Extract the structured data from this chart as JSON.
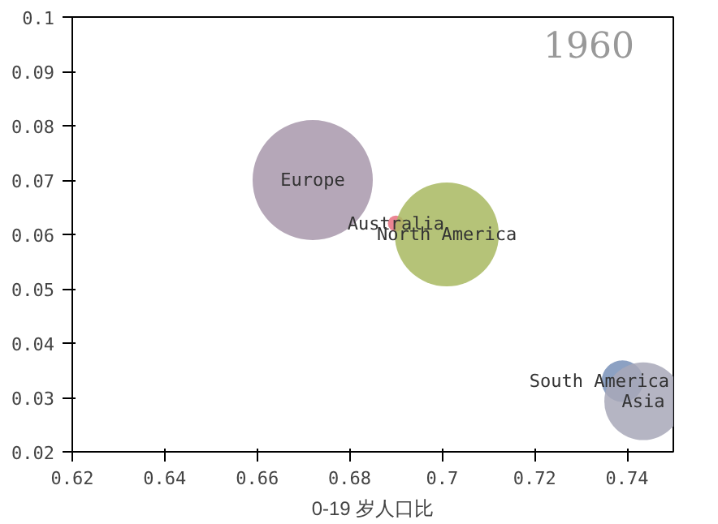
{
  "chart_data": {
    "type": "bubble",
    "title": "1960",
    "xlabel": "0-19 岁人口比",
    "xlim": [
      0.62,
      0.75
    ],
    "ylim": [
      0.02,
      0.1
    ],
    "xticks": [
      0.62,
      0.64,
      0.66,
      0.68,
      {
        "value": 0.7,
        "label": "0.7"
      },
      0.72,
      0.74
    ],
    "yticks": [
      0.02,
      0.03,
      0.04,
      0.05,
      0.06,
      0.07,
      0.08,
      0.09,
      {
        "value": 0.1,
        "label": "0.1"
      }
    ],
    "grid": false,
    "series": [
      {
        "name": "Europe",
        "color": "#a898ac",
        "x": [
          0.672
        ],
        "values": [
          0.07
        ],
        "sizes": [
          1
        ]
      },
      {
        "name": "Australia",
        "color": "#e87080",
        "x": [
          0.69
        ],
        "values": [
          0.062
        ],
        "sizes": [
          0.018
        ]
      },
      {
        "name": "North America",
        "color": "#a8b860",
        "x": [
          0.701
        ],
        "values": [
          0.06
        ],
        "sizes": [
          0.75
        ]
      },
      {
        "name": "South America",
        "color": "#7890b8",
        "x": [
          0.739
        ],
        "values": [
          0.033
        ],
        "sizes": [
          0.12
        ]
      },
      {
        "name": "Asia",
        "color": "#a8a8b8",
        "x": [
          0.7435
        ],
        "values": [
          0.0293
        ],
        "sizes": [
          0.42
        ]
      }
    ]
  }
}
